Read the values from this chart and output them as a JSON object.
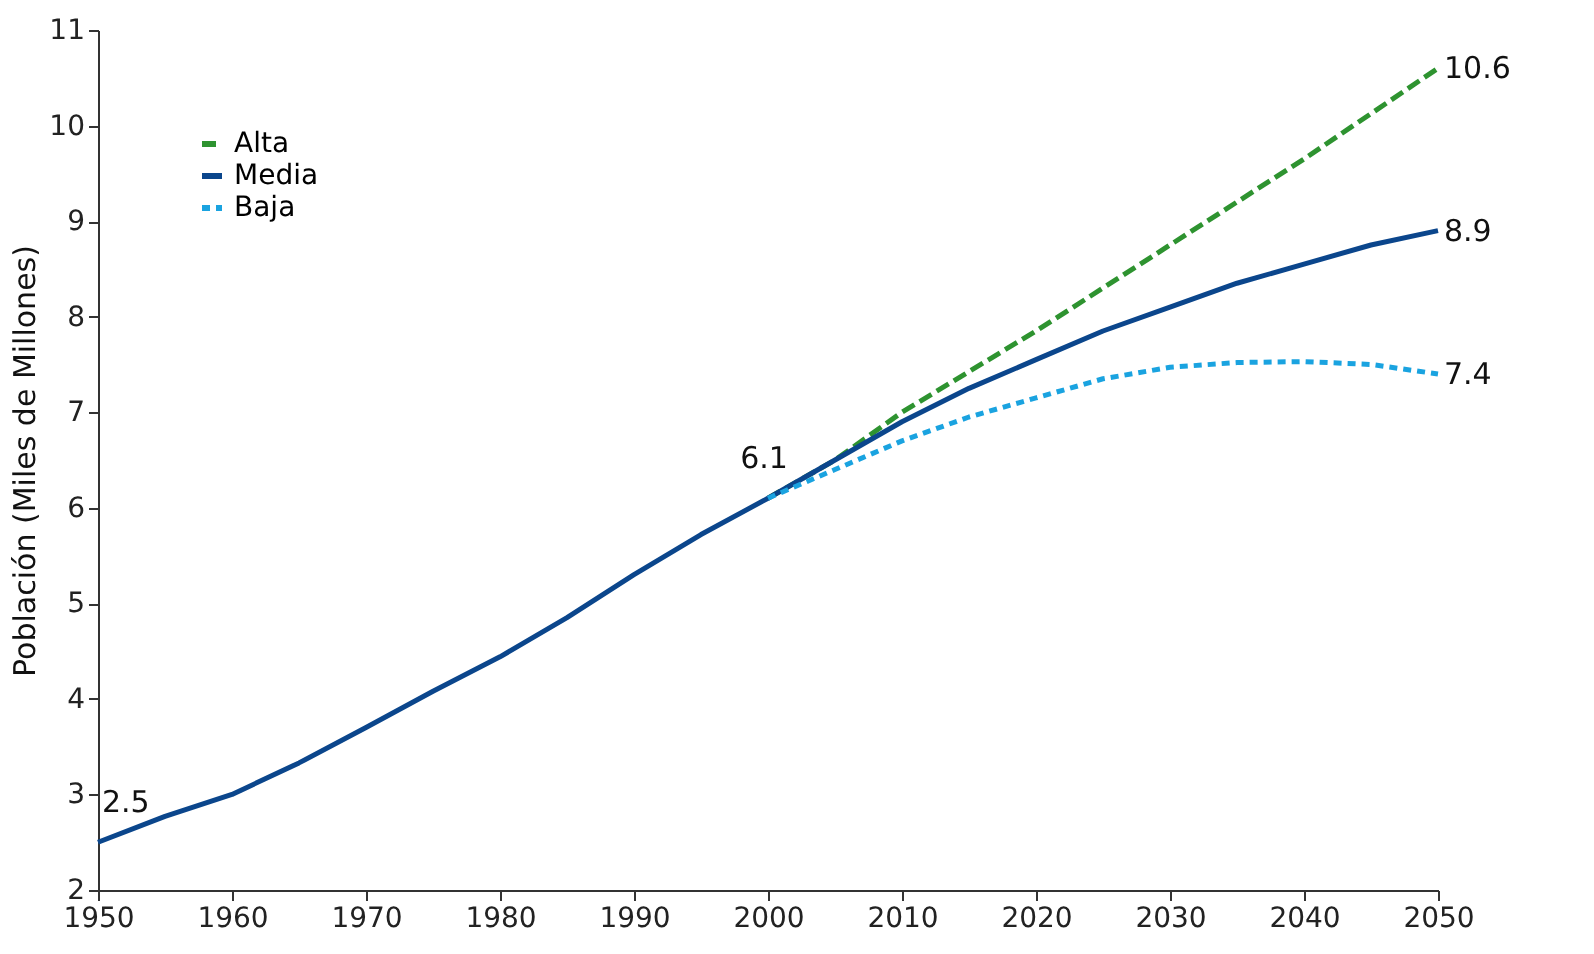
{
  "chart_data": {
    "type": "line",
    "ylabel": "Población (Miles de Millones)",
    "xlim": [
      1950,
      2050
    ],
    "xticks": [
      1950,
      1960,
      1970,
      1980,
      1990,
      2000,
      2010,
      2020,
      2030,
      2040,
      2050
    ],
    "ylim": [
      2,
      11
    ],
    "yticks": [
      2,
      3,
      4,
      5,
      6,
      7,
      8,
      9,
      10,
      11
    ],
    "grid": false,
    "legend": "top left",
    "marker": "none",
    "series": [
      {
        "name": "Alta",
        "color": "#2e9330",
        "line_style": "dashed",
        "x": [
          2000,
          2005,
          2010,
          2020,
          2030,
          2040,
          2050
        ],
        "values": [
          6.1,
          6.5,
          7.0,
          7.85,
          8.75,
          9.65,
          10.6
        ]
      },
      {
        "name": "Media",
        "color": "#0b468c",
        "line_style": "solid",
        "x": [
          1950,
          1955,
          1960,
          1965,
          1970,
          1975,
          1980,
          1985,
          1990,
          1995,
          2000,
          2005,
          2010,
          2015,
          2020,
          2025,
          2030,
          2035,
          2040,
          2045,
          2050
        ],
        "values": [
          2.5,
          2.77,
          3.0,
          3.33,
          3.7,
          4.08,
          4.44,
          4.85,
          5.3,
          5.72,
          6.1,
          6.5,
          6.9,
          7.25,
          7.55,
          7.85,
          8.1,
          8.35,
          8.55,
          8.75,
          8.9
        ]
      },
      {
        "name": "Baja",
        "color": "#1aa3e0",
        "line_style": "dotted",
        "x": [
          2000,
          2005,
          2010,
          2015,
          2020,
          2025,
          2030,
          2035,
          2040,
          2045,
          2050
        ],
        "values": [
          6.1,
          6.4,
          6.7,
          6.95,
          7.15,
          7.35,
          7.47,
          7.52,
          7.53,
          7.5,
          7.4
        ]
      }
    ],
    "annotations": [
      {
        "text": "2.5",
        "x": 1950,
        "y": 2.5
      },
      {
        "text": "6.1",
        "x": 2000,
        "y": 6.1
      },
      {
        "text": "10.6",
        "x": 2050,
        "y": 10.6
      },
      {
        "text": "8.9",
        "x": 2050,
        "y": 8.9
      },
      {
        "text": "7.4",
        "x": 2050,
        "y": 7.4
      }
    ]
  }
}
